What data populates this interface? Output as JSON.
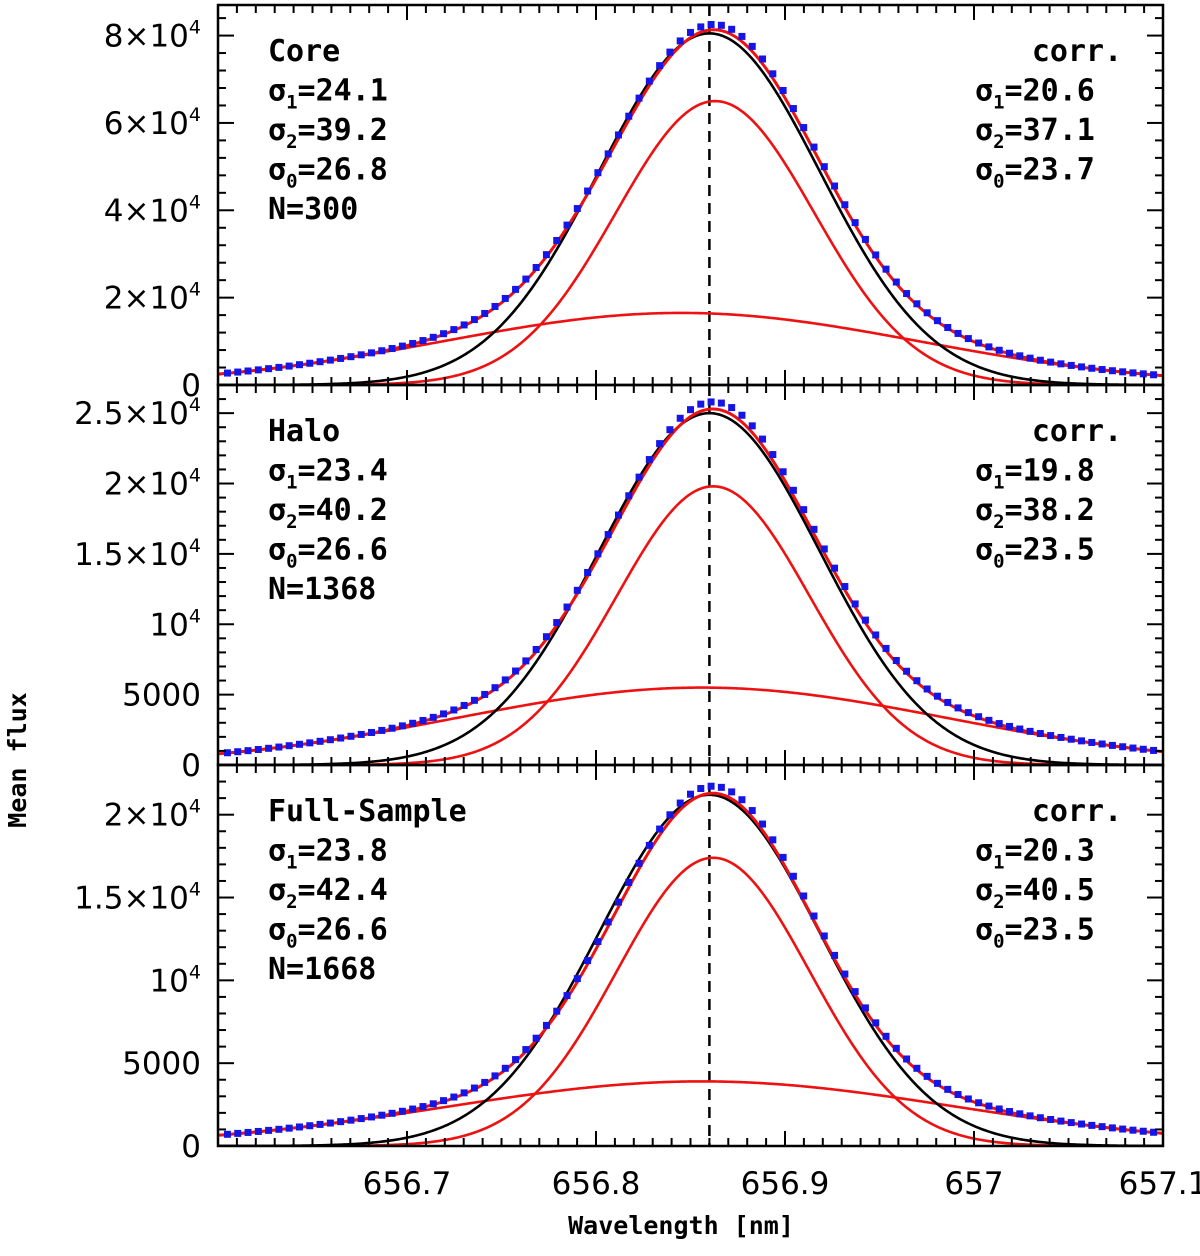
{
  "chart_data": {
    "type": "line",
    "xlabel": "Wavelength [nm]",
    "ylabel": "Mean flux",
    "xlim": [
      656.6,
      657.1
    ],
    "xticks": [
      "656.7",
      "656.8",
      "656.9",
      "657",
      "657.1"
    ],
    "xtick_values": [
      656.7,
      656.8,
      656.9,
      657.0,
      657.1
    ],
    "line_center": 656.86,
    "series_legend": {
      "observed": "Mean profile (blue squares)",
      "total_fit": "Total two-Gaussian fit (red)",
      "component_1": "Narrow component (red)",
      "component_2": "Broad component (red)",
      "single_gaussian": "Single-Gaussian fit (black)"
    },
    "panels": [
      {
        "name": "core",
        "ylim": [
          0,
          87000
        ],
        "yticks": [
          {
            "value": 0,
            "mant": "0",
            "exp": ""
          },
          {
            "value": 20000,
            "mant": "2×10",
            "exp": "4"
          },
          {
            "value": 40000,
            "mant": "4×10",
            "exp": "4"
          },
          {
            "value": 60000,
            "mant": "6×10",
            "exp": "4"
          },
          {
            "value": 80000,
            "mant": "8×10",
            "exp": "4"
          }
        ],
        "label": "Core",
        "sigma1": "=24.1",
        "sigma2": "=39.2",
        "sigma0": "=26.8",
        "n": "N=300",
        "corr_label": "corr.",
        "corr_sigma1": "=20.6",
        "corr_sigma2": "=37.1",
        "corr_sigma0": "=23.7",
        "narrow": {
          "amp": 65000,
          "center": 656.863,
          "sigma_nm": 0.0525
        },
        "broad": {
          "amp": 16500,
          "center": 656.845,
          "sigma_nm": 0.126
        },
        "single": {
          "amp": 80500,
          "center": 656.86,
          "sigma_nm": 0.0585
        },
        "points_scale": 1.015
      },
      {
        "name": "halo",
        "ylim": [
          0,
          27000
        ],
        "yticks": [
          {
            "value": 0,
            "mant": "0",
            "exp": ""
          },
          {
            "value": 5000,
            "mant": "5000",
            "exp": ""
          },
          {
            "value": 10000,
            "mant": "10",
            "exp": "4"
          },
          {
            "value": 15000,
            "mant": "1.5×10",
            "exp": "4"
          },
          {
            "value": 20000,
            "mant": "2×10",
            "exp": "4"
          },
          {
            "value": 25000,
            "mant": "2.5×10",
            "exp": "4"
          }
        ],
        "label": "Halo",
        "sigma1": "=23.4",
        "sigma2": "=40.2",
        "sigma0": "=26.6",
        "n": "N=1368",
        "corr_label": "corr.",
        "corr_sigma1": "=19.8",
        "corr_sigma2": "=38.2",
        "corr_sigma0": "=23.5",
        "narrow": {
          "amp": 19800,
          "center": 656.862,
          "sigma_nm": 0.051
        },
        "broad": {
          "amp": 5500,
          "center": 656.856,
          "sigma_nm": 0.13
        },
        "single": {
          "amp": 25000,
          "center": 656.86,
          "sigma_nm": 0.0585
        },
        "points_scale": 1.02
      },
      {
        "name": "full-sample",
        "ylim": [
          0,
          23000
        ],
        "yticks": [
          {
            "value": 0,
            "mant": "0",
            "exp": ""
          },
          {
            "value": 5000,
            "mant": "5000",
            "exp": ""
          },
          {
            "value": 10000,
            "mant": "10",
            "exp": "4"
          },
          {
            "value": 15000,
            "mant": "1.5×10",
            "exp": "4"
          },
          {
            "value": 20000,
            "mant": "2×10",
            "exp": "4"
          }
        ],
        "label": "Full-Sample",
        "sigma1": "=23.8",
        "sigma2": "=42.4",
        "sigma0": "=26.6",
        "n": "N=1668",
        "corr_label": "corr.",
        "corr_sigma1": "=20.3",
        "corr_sigma2": "=40.5",
        "corr_sigma0": "=23.5",
        "narrow": {
          "amp": 17400,
          "center": 656.862,
          "sigma_nm": 0.051
        },
        "broad": {
          "amp": 3900,
          "center": 656.856,
          "sigma_nm": 0.135
        },
        "single": {
          "amp": 21200,
          "center": 656.86,
          "sigma_nm": 0.0585
        },
        "points_scale": 1.02
      }
    ]
  },
  "colors": {
    "observed": "#1515e6",
    "fit": "#ee1111",
    "single": "#000000"
  }
}
